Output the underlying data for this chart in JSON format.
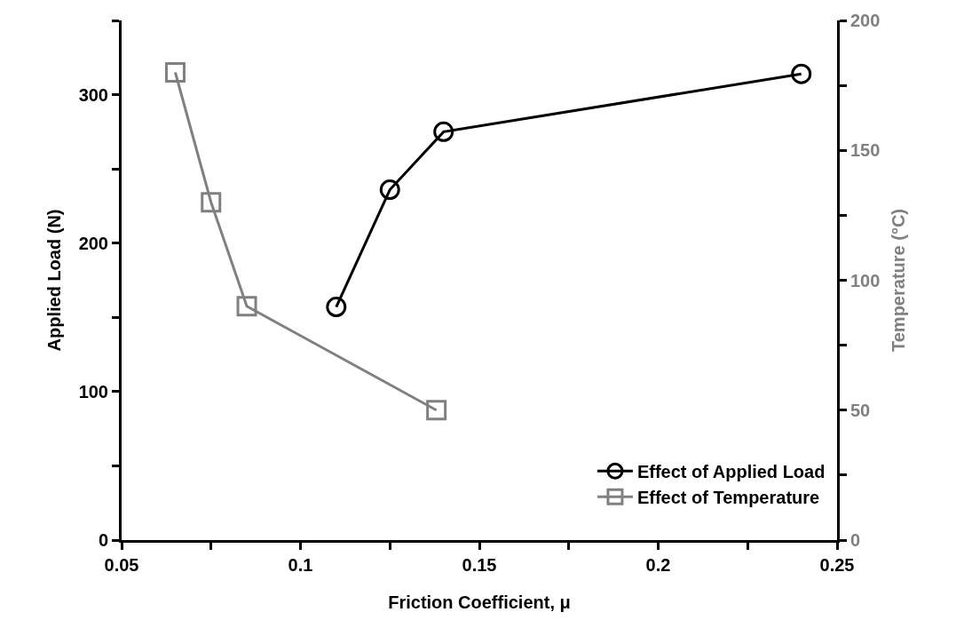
{
  "chart_data": {
    "type": "line",
    "xlabel": "Friction Coefficient, μ",
    "ylabel": "Applied Load (N)",
    "y2label": "Temperature (°C)",
    "xlim": [
      0.05,
      0.25
    ],
    "xticks": [
      0.05,
      {
        "value": 0.075,
        "label": null
      },
      0.1,
      {
        "value": 0.125,
        "label": null
      },
      0.15,
      {
        "value": 0.175,
        "label": null
      },
      0.2,
      {
        "value": 0.225,
        "label": null
      },
      0.25
    ],
    "ylim": [
      0,
      350
    ],
    "yticks": [
      0,
      {
        "value": 50,
        "label": null
      },
      100,
      {
        "value": 150,
        "label": null
      },
      200,
      {
        "value": 250,
        "label": null
      },
      300,
      {
        "value": 350,
        "label": null
      }
    ],
    "y2lim": [
      0,
      200
    ],
    "y2ticks": [
      0,
      {
        "value": 25,
        "label": null
      },
      50,
      {
        "value": 75,
        "label": null
      },
      100,
      {
        "value": 125,
        "label": null
      },
      150,
      {
        "value": 175,
        "label": null
      },
      200
    ],
    "legend": "bottom right",
    "line_style": "solid",
    "series": [
      {
        "name": "Effect of Applied Load",
        "color": "#000000",
        "marker": "circle",
        "x": [
          0.11,
          0.125,
          0.14,
          0.24
        ],
        "values": [
          157,
          236,
          275,
          314
        ]
      },
      {
        "name": "Effect of Temperature",
        "color": "#808080",
        "marker": "square",
        "axis": "y2",
        "x": [
          0.065,
          0.075,
          0.085,
          0.138
        ],
        "values": [
          180,
          130,
          90,
          50
        ]
      }
    ]
  }
}
